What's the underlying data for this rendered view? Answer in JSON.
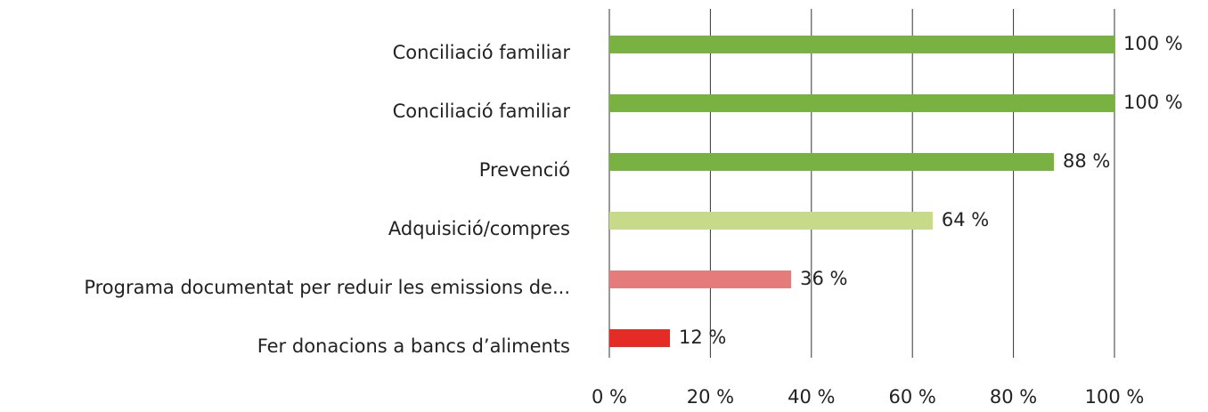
{
  "chart_data": {
    "type": "bar",
    "orientation": "horizontal",
    "categories": [
      "Conciliació familiar",
      "Conciliació familiar",
      "Prevenció",
      "Adquisició/compres",
      "Programa documentat per reduir les emissions de...",
      "Fer donacions a bancs d’aliments"
    ],
    "values": [
      100,
      100,
      88,
      64,
      36,
      12
    ],
    "value_labels": [
      "100 %",
      "100 %",
      "88 %",
      "64 %",
      "36 %",
      "12 %"
    ],
    "colors": [
      "#7ab143",
      "#7ab143",
      "#7ab143",
      "#c6da8a",
      "#e47c7c",
      "#e52b25"
    ],
    "xlim": [
      0,
      100
    ],
    "xticks": [
      {
        "value": 0,
        "label": "0 %"
      },
      {
        "value": 20,
        "label": "20 %"
      },
      {
        "value": 40,
        "label": "40 %"
      },
      {
        "value": 60,
        "label": "60 %"
      },
      {
        "value": 80,
        "label": "80 %"
      },
      {
        "value": 100,
        "label": "100 %"
      }
    ],
    "grid": true
  }
}
